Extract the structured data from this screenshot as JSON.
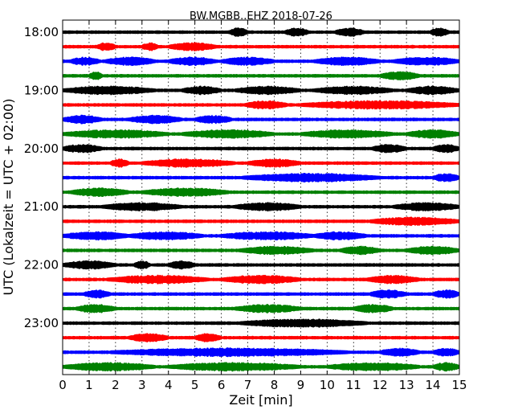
{
  "chart_data": {
    "type": "line",
    "title": "BW.MGBB..EHZ 2018-07-26",
    "xlabel": "Zeit  [min]",
    "ylabel": "UTC (Lokalzeit = UTC + 02:00)",
    "xlim": [
      0,
      15
    ],
    "x_ticks": [
      "0",
      "1",
      "2",
      "3",
      "4",
      "5",
      "6",
      "7",
      "8",
      "9",
      "10",
      "11",
      "12",
      "13",
      "14",
      "15"
    ],
    "y_tick_labels": [
      "18:00",
      "19:00",
      "20:00",
      "21:00",
      "22:00",
      "23:00"
    ],
    "trace_interval_min": 15,
    "grid": "vertical dotted",
    "colors": [
      "#000000",
      "#ff0000",
      "#0000ff",
      "#008000"
    ],
    "traces": [
      {
        "start": "18:00",
        "color": "#000000",
        "bursts": [
          [
            6.3,
            7.0
          ],
          [
            8.4,
            9.3
          ],
          [
            10.3,
            11.4
          ],
          [
            13.9,
            14.6
          ]
        ]
      },
      {
        "start": "18:15",
        "color": "#ff0000",
        "bursts": [
          [
            1.3,
            2.0
          ],
          [
            3.0,
            3.6
          ],
          [
            4.0,
            5.8
          ]
        ]
      },
      {
        "start": "18:30",
        "color": "#0000ff",
        "bursts": [
          [
            0.3,
            1.4
          ],
          [
            1.6,
            3.5
          ],
          [
            4.0,
            5.8
          ],
          [
            6.0,
            8.0
          ],
          [
            9.5,
            12.0
          ],
          [
            12.5,
            15.0
          ]
        ]
      },
      {
        "start": "18:45",
        "color": "#008000",
        "bursts": [
          [
            1.0,
            1.5
          ],
          [
            12.0,
            13.5
          ]
        ]
      },
      {
        "start": "19:00",
        "color": "#000000",
        "bursts": [
          [
            0.0,
            3.5
          ],
          [
            4.5,
            6.0
          ],
          [
            6.5,
            9.0
          ],
          [
            9.5,
            12.5
          ],
          [
            13.0,
            15.0
          ]
        ]
      },
      {
        "start": "19:15",
        "color": "#ff0000",
        "bursts": [
          [
            6.9,
            8.5
          ],
          [
            9.0,
            15.0
          ]
        ]
      },
      {
        "start": "19:30",
        "color": "#0000ff",
        "bursts": [
          [
            0.0,
            1.5
          ],
          [
            2.5,
            4.5
          ],
          [
            5.0,
            6.4
          ]
        ]
      },
      {
        "start": "19:45",
        "color": "#008000",
        "bursts": [
          [
            0.0,
            4.0
          ],
          [
            4.5,
            8.0
          ],
          [
            9.0,
            12.5
          ],
          [
            13.0,
            15.0
          ]
        ]
      },
      {
        "start": "20:00",
        "color": "#000000",
        "bursts": [
          [
            0.0,
            1.5
          ],
          [
            11.7,
            13.0
          ],
          [
            14.0,
            15.0
          ]
        ]
      },
      {
        "start": "20:15",
        "color": "#ff0000",
        "bursts": [
          [
            1.8,
            2.5
          ],
          [
            3.0,
            6.5
          ],
          [
            7.0,
            9.0
          ]
        ]
      },
      {
        "start": "20:30",
        "color": "#0000ff",
        "bursts": [
          [
            6.8,
            12.0
          ],
          [
            14.0,
            15.0
          ]
        ]
      },
      {
        "start": "20:45",
        "color": "#008000",
        "bursts": [
          [
            0.3,
            2.5
          ],
          [
            3.0,
            6.3
          ]
        ]
      },
      {
        "start": "21:00",
        "color": "#000000",
        "bursts": [
          [
            1.5,
            4.5
          ],
          [
            6.5,
            9.0
          ],
          [
            12.5,
            15.0
          ]
        ]
      },
      {
        "start": "21:15",
        "color": "#ff0000",
        "bursts": [
          [
            11.6,
            15.0
          ]
        ]
      },
      {
        "start": "21:30",
        "color": "#0000ff",
        "bursts": [
          [
            0.0,
            2.5
          ],
          [
            2.5,
            5.3
          ],
          [
            6.0,
            9.5
          ],
          [
            9.5,
            11.5
          ]
        ]
      },
      {
        "start": "21:45",
        "color": "#008000",
        "bursts": [
          [
            6.7,
            9.5
          ],
          [
            10.5,
            12.0
          ],
          [
            13.0,
            15.0
          ]
        ]
      },
      {
        "start": "22:00",
        "color": "#000000",
        "bursts": [
          [
            0.0,
            2.0
          ],
          [
            2.7,
            3.3
          ],
          [
            4.0,
            5.0
          ]
        ]
      },
      {
        "start": "22:15",
        "color": "#ff0000",
        "bursts": [
          [
            1.7,
            5.5
          ],
          [
            6.0,
            9.0
          ],
          [
            11.5,
            13.5
          ]
        ]
      },
      {
        "start": "22:30",
        "color": "#0000ff",
        "bursts": [
          [
            0.8,
            1.8
          ],
          [
            11.6,
            13.0
          ],
          [
            14.0,
            15.0
          ]
        ]
      },
      {
        "start": "22:45",
        "color": "#008000",
        "bursts": [
          [
            0.5,
            2.0
          ],
          [
            6.5,
            9.0
          ],
          [
            11.0,
            12.5
          ]
        ]
      },
      {
        "start": "23:00",
        "color": "#000000",
        "bursts": [
          [
            6.7,
            11.5
          ]
        ]
      },
      {
        "start": "23:15",
        "color": "#ff0000",
        "bursts": [
          [
            2.5,
            4.0
          ],
          [
            5.0,
            6.0
          ]
        ]
      },
      {
        "start": "23:30",
        "color": "#0000ff",
        "bursts": [
          [
            1.8,
            10.8
          ],
          [
            12.0,
            13.5
          ],
          [
            14.0,
            15.0
          ]
        ]
      },
      {
        "start": "23:45",
        "color": "#008000",
        "bursts": [
          [
            0.0,
            3.5
          ],
          [
            4.0,
            9.0
          ],
          [
            10.0,
            13.5
          ],
          [
            14.0,
            15.0
          ]
        ]
      }
    ]
  }
}
